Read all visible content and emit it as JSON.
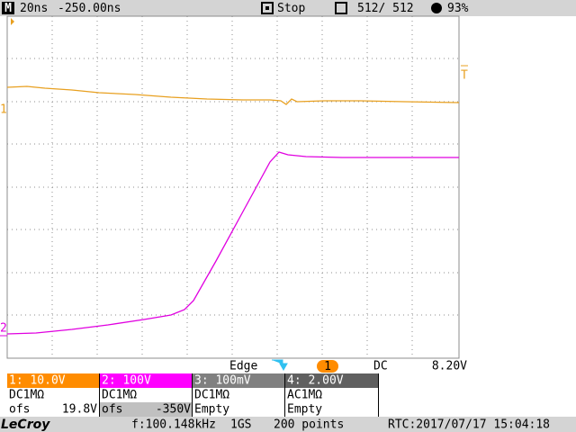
{
  "top_bar": {
    "mode_icon": "M",
    "timebase": "20ns",
    "delay": "-250.00ns",
    "status": "Stop",
    "acquisitions": "512/ 512",
    "battery": "93%"
  },
  "markers": {
    "trigger_level": "T",
    "ch1": "1",
    "ch2": "2"
  },
  "trigger": {
    "mode": "Edge",
    "source": "1",
    "coupling": "DC",
    "level": "8.20V"
  },
  "channels": [
    {
      "header": "1: 10.0V",
      "coupling": "DC1MΩ",
      "offset_label": "ofs",
      "offset": "19.8V"
    },
    {
      "header": "2:  100V",
      "coupling": "DC1MΩ",
      "offset_label": "ofs",
      "offset": "-350V"
    },
    {
      "header": "3: 100mV",
      "coupling": "DC1MΩ",
      "info": "Empty"
    },
    {
      "header": "4: 2.00V",
      "coupling": "AC1MΩ",
      "info": "Empty"
    }
  ],
  "status_bar": {
    "brand": "LeCroy",
    "frequency": "f:100.148kHz",
    "sample_rate": "1GS",
    "points": "200 points",
    "rtc": "RTC:2017/07/17 15:04:18"
  }
}
